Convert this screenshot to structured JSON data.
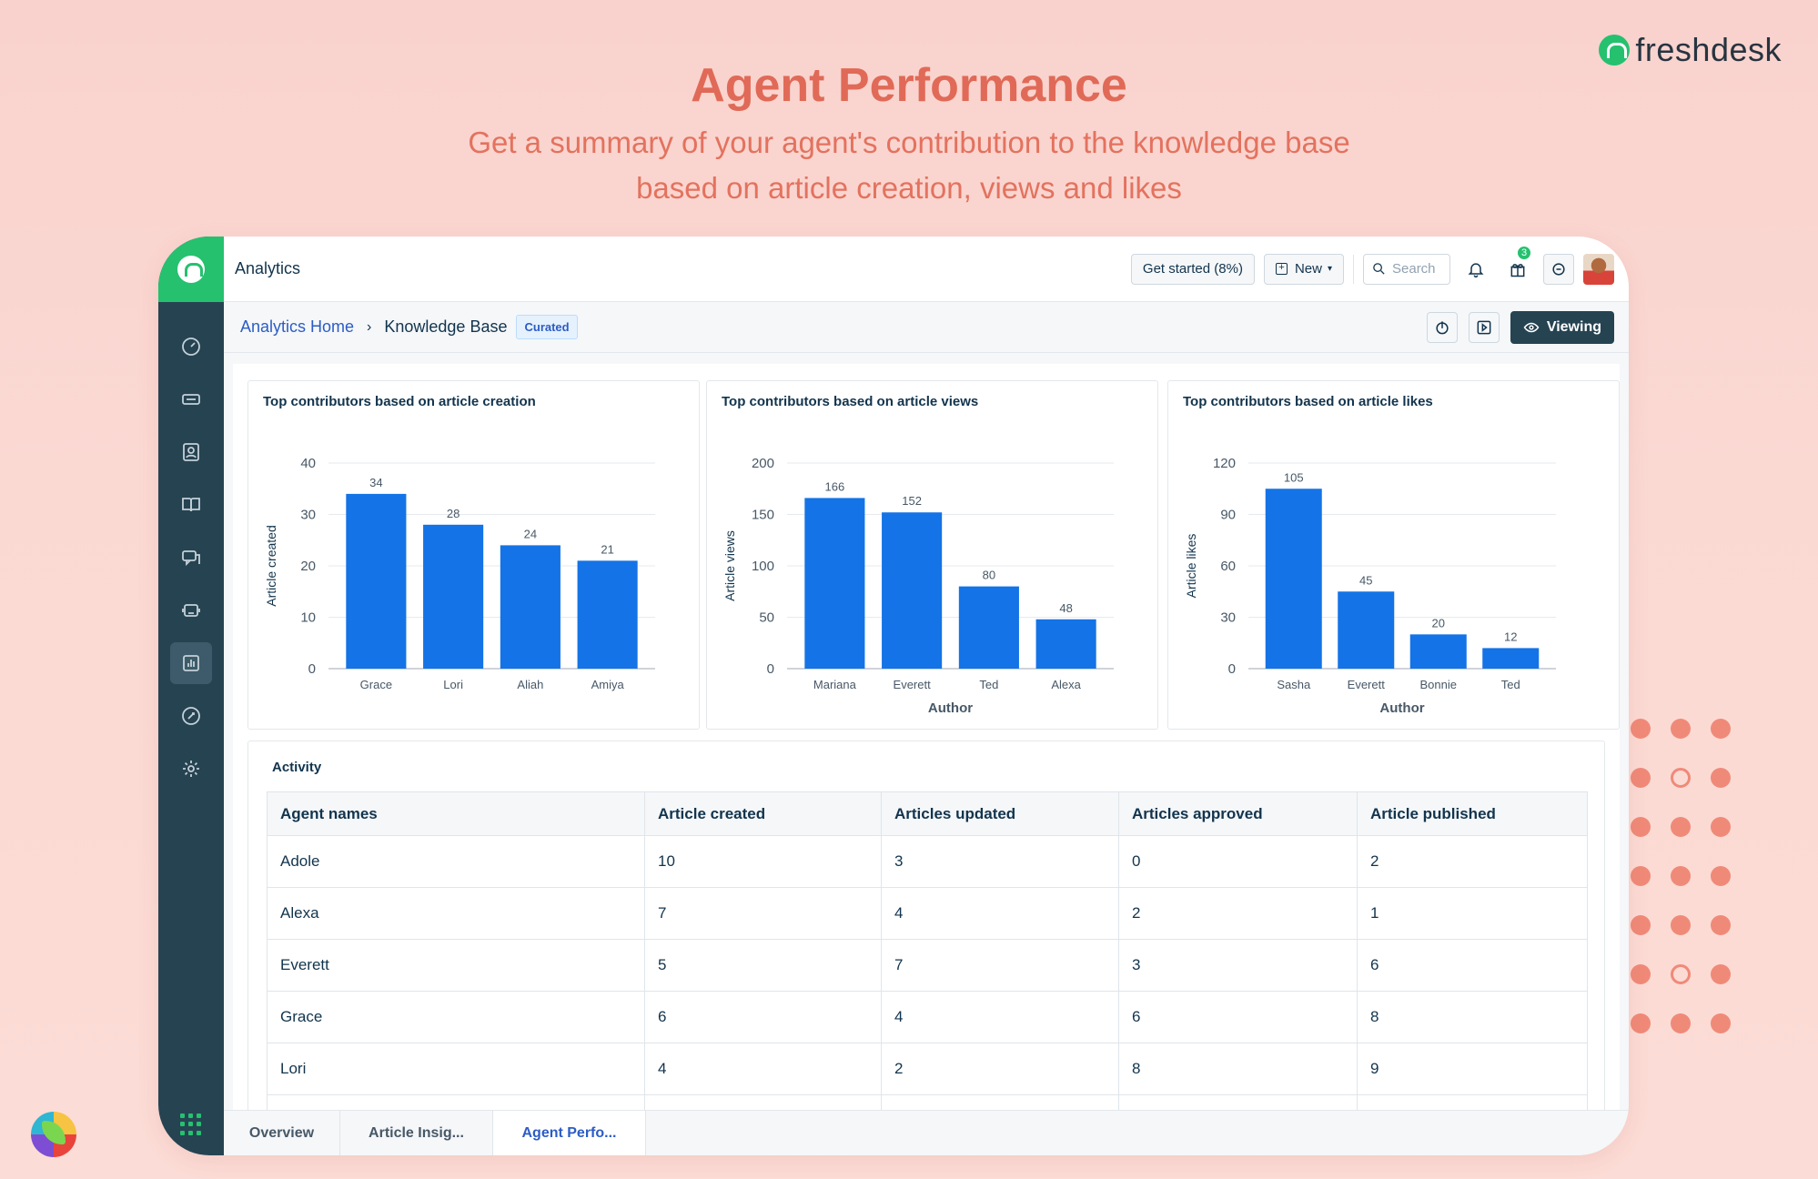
{
  "hero": {
    "title": "Agent Performance",
    "subtitle_line1": "Get a summary of your agent's contribution to the knowledge base",
    "subtitle_line2": "based on article creation, views and likes"
  },
  "brand": {
    "name": "freshdesk"
  },
  "topbar": {
    "title": "Analytics",
    "get_started": "Get started (8%)",
    "new_label": "New",
    "search_placeholder": "Search",
    "gift_badge": "3"
  },
  "subbar": {
    "crumb_home": "Analytics Home",
    "crumb_current": "Knowledge Base",
    "tag": "Curated",
    "viewing": "Viewing"
  },
  "chart_data": [
    {
      "type": "bar",
      "title": "Top contributors based on article creation",
      "xlabel": "",
      "ylabel": "Article created",
      "categories": [
        "Grace",
        "Lori",
        "Aliah",
        "Amiya"
      ],
      "values": [
        34,
        28,
        24,
        21
      ],
      "ylim": [
        0,
        40
      ],
      "yticks": [
        0,
        10,
        20,
        30,
        40
      ],
      "color": "#1473e6"
    },
    {
      "type": "bar",
      "title": "Top contributors based on article views",
      "xlabel": "Author",
      "ylabel": "Article views",
      "categories": [
        "Mariana",
        "Everett",
        "Ted",
        "Alexa"
      ],
      "values": [
        166,
        152,
        80,
        48
      ],
      "ylim": [
        0,
        200
      ],
      "yticks": [
        0,
        50,
        100,
        150,
        200
      ],
      "color": "#1473e6"
    },
    {
      "type": "bar",
      "title": "Top contributors based on article likes",
      "xlabel": "Author",
      "ylabel": "Article likes",
      "categories": [
        "Sasha",
        "Everett",
        "Bonnie",
        "Ted"
      ],
      "values": [
        105,
        45,
        20,
        12
      ],
      "ylim": [
        0,
        120
      ],
      "yticks": [
        0,
        30,
        60,
        90,
        120
      ],
      "color": "#1473e6"
    }
  ],
  "activity": {
    "title": "Activity",
    "columns": [
      "Agent names",
      "Article created",
      "Articles updated",
      "Articles approved",
      "Article published"
    ],
    "rows": [
      [
        "Adole",
        "10",
        "3",
        "0",
        "2"
      ],
      [
        "Alexa",
        "7",
        "4",
        "2",
        "1"
      ],
      [
        "Everett",
        "5",
        "7",
        "3",
        "6"
      ],
      [
        "Grace",
        "6",
        "4",
        "6",
        "8"
      ],
      [
        "Lori",
        "4",
        "2",
        "8",
        "9"
      ]
    ]
  },
  "tabs": [
    {
      "label": "Overview",
      "active": false
    },
    {
      "label": "Article Insig...",
      "active": false
    },
    {
      "label": "Agent Perfo...",
      "active": true
    }
  ]
}
